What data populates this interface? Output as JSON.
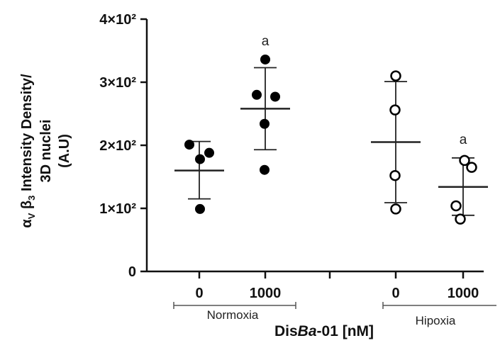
{
  "chart_data": {
    "type": "scatter",
    "ylabel": {
      "line1": "αVβ3 Intensity Density/",
      "line1_alpha": "α",
      "line1_sub_v": "V",
      "line1_beta": "β",
      "line1_sub_3": "3",
      "line1_rest": "Intensity Density/",
      "line2": "3D nuclei",
      "line3": "(A.U)"
    },
    "xlabel": {
      "prefix": "Dis",
      "italic": "Ba",
      "suffix": "-01 [nM]"
    },
    "ylim": [
      0,
      400
    ],
    "yticks": [
      {
        "value": 0,
        "label": "0"
      },
      {
        "value": 100,
        "label": "1×10²"
      },
      {
        "value": 200,
        "label": "2×10²"
      },
      {
        "value": 300,
        "label": "3×10²"
      },
      {
        "value": 400,
        "label": "4×10²"
      }
    ],
    "groups": [
      {
        "label": "Normoxia"
      },
      {
        "label": "Hipoxia"
      }
    ],
    "categories": [
      {
        "label": "0",
        "group": 0,
        "filled": true,
        "mean": 160,
        "sd_low": 115,
        "sd_high": 206,
        "points": [
          201,
          188,
          178,
          99
        ],
        "annotation": ""
      },
      {
        "label": "1000",
        "group": 0,
        "filled": true,
        "mean": 258,
        "sd_low": 193,
        "sd_high": 323,
        "points": [
          336,
          280,
          277,
          234,
          161
        ],
        "annotation": "a"
      },
      {
        "label": "0",
        "group": 1,
        "filled": false,
        "mean": 205,
        "sd_low": 109,
        "sd_high": 301,
        "points": [
          310,
          256,
          152,
          99
        ],
        "annotation": ""
      },
      {
        "label": "1000",
        "group": 1,
        "filled": false,
        "mean": 134,
        "sd_low": 89,
        "sd_high": 180,
        "points": [
          176,
          165,
          104,
          83
        ],
        "annotation": "a"
      }
    ],
    "colors": {
      "marker": "#000000",
      "line": "#222222",
      "axis": "#111111",
      "group_bracket": "#555555"
    }
  }
}
